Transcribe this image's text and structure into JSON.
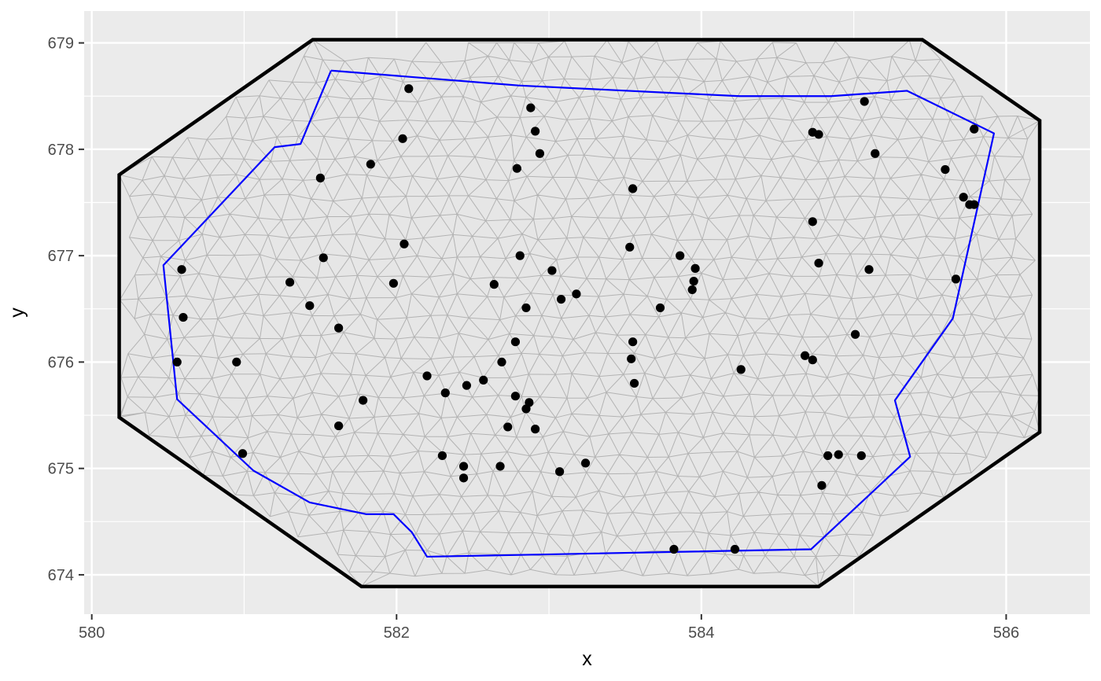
{
  "chart_data": {
    "type": "scatter",
    "title": "",
    "xlabel": "x",
    "ylabel": "y",
    "xlim": [
      579.95,
      586.55
    ],
    "ylim": [
      673.63,
      679.3
    ],
    "x_ticks": [
      580,
      582,
      584,
      586
    ],
    "y_ticks": [
      674,
      675,
      676,
      677,
      678,
      679
    ],
    "x_tick_labels": [
      "580",
      "582",
      "584",
      "586"
    ],
    "y_tick_labels": [
      "674",
      "675",
      "676",
      "677",
      "678",
      "679"
    ],
    "grid": true,
    "legend": "none",
    "colors": {
      "panel_background": "#ebebeb",
      "grid": "#ffffff",
      "mesh_fill": "#e6e6e6",
      "mesh_lines": "#b3b3b3",
      "outer_boundary": "#000000",
      "inner_boundary": "#0000ff",
      "points": "#000000"
    },
    "outer_boundary": [
      [
        581.45,
        679.03
      ],
      [
        585.45,
        679.03
      ],
      [
        586.22,
        678.27
      ],
      [
        586.22,
        675.34
      ],
      [
        584.77,
        673.89
      ],
      [
        581.77,
        673.89
      ],
      [
        580.18,
        675.48
      ],
      [
        580.18,
        677.76
      ]
    ],
    "inner_boundary": [
      [
        581.57,
        678.74
      ],
      [
        582.8,
        678.6
      ],
      [
        583.8,
        678.53
      ],
      [
        584.25,
        678.5
      ],
      [
        584.85,
        678.5
      ],
      [
        585.35,
        678.55
      ],
      [
        585.92,
        678.15
      ],
      [
        585.65,
        676.41
      ],
      [
        585.27,
        675.64
      ],
      [
        585.37,
        675.11
      ],
      [
        584.72,
        674.24
      ],
      [
        582.2,
        674.17
      ],
      [
        582.1,
        674.4
      ],
      [
        581.98,
        674.57
      ],
      [
        581.8,
        674.57
      ],
      [
        581.43,
        674.68
      ],
      [
        581.06,
        674.98
      ],
      [
        580.56,
        675.65
      ],
      [
        580.47,
        676.91
      ],
      [
        581.2,
        678.02
      ],
      [
        581.37,
        678.05
      ]
    ],
    "points": [
      [
        582.08,
        678.57
      ],
      [
        582.88,
        678.39
      ],
      [
        582.91,
        678.17
      ],
      [
        582.94,
        677.96
      ],
      [
        582.79,
        677.82
      ],
      [
        582.04,
        678.1
      ],
      [
        581.83,
        677.86
      ],
      [
        581.5,
        677.73
      ],
      [
        583.55,
        677.63
      ],
      [
        584.73,
        678.16
      ],
      [
        584.77,
        678.14
      ],
      [
        585.07,
        678.45
      ],
      [
        585.14,
        677.96
      ],
      [
        585.79,
        678.19
      ],
      [
        585.6,
        677.81
      ],
      [
        585.72,
        677.55
      ],
      [
        585.76,
        677.48
      ],
      [
        585.79,
        677.48
      ],
      [
        584.73,
        677.32
      ],
      [
        584.77,
        676.93
      ],
      [
        585.1,
        676.87
      ],
      [
        585.67,
        676.78
      ],
      [
        585.01,
        676.26
      ],
      [
        584.68,
        676.06
      ],
      [
        584.73,
        676.02
      ],
      [
        584.26,
        675.93
      ],
      [
        584.83,
        675.12
      ],
      [
        584.9,
        675.13
      ],
      [
        585.05,
        675.12
      ],
      [
        584.79,
        674.84
      ],
      [
        584.22,
        674.24
      ],
      [
        583.82,
        674.24
      ],
      [
        583.53,
        677.08
      ],
      [
        583.86,
        677.0
      ],
      [
        583.96,
        676.88
      ],
      [
        583.95,
        676.76
      ],
      [
        583.94,
        676.68
      ],
      [
        583.73,
        676.51
      ],
      [
        583.55,
        676.19
      ],
      [
        583.54,
        676.03
      ],
      [
        583.56,
        675.8
      ],
      [
        582.81,
        677.0
      ],
      [
        583.02,
        676.86
      ],
      [
        583.18,
        676.64
      ],
      [
        583.08,
        676.59
      ],
      [
        582.85,
        676.51
      ],
      [
        582.64,
        676.73
      ],
      [
        582.78,
        676.19
      ],
      [
        582.69,
        676.0
      ],
      [
        582.57,
        675.83
      ],
      [
        582.46,
        675.78
      ],
      [
        582.32,
        675.71
      ],
      [
        582.2,
        675.87
      ],
      [
        582.78,
        675.68
      ],
      [
        582.87,
        675.62
      ],
      [
        582.85,
        675.56
      ],
      [
        582.73,
        675.39
      ],
      [
        582.91,
        675.37
      ],
      [
        582.68,
        675.02
      ],
      [
        582.3,
        675.12
      ],
      [
        582.44,
        675.02
      ],
      [
        582.44,
        674.91
      ],
      [
        583.07,
        674.97
      ],
      [
        583.24,
        675.05
      ],
      [
        582.05,
        677.11
      ],
      [
        581.98,
        676.74
      ],
      [
        581.52,
        676.98
      ],
      [
        581.3,
        676.75
      ],
      [
        581.43,
        676.53
      ],
      [
        581.62,
        676.32
      ],
      [
        581.78,
        675.64
      ],
      [
        581.62,
        675.4
      ],
      [
        580.95,
        676.0
      ],
      [
        580.99,
        675.14
      ],
      [
        580.59,
        676.87
      ],
      [
        580.6,
        676.42
      ],
      [
        580.56,
        676.0
      ]
    ]
  }
}
